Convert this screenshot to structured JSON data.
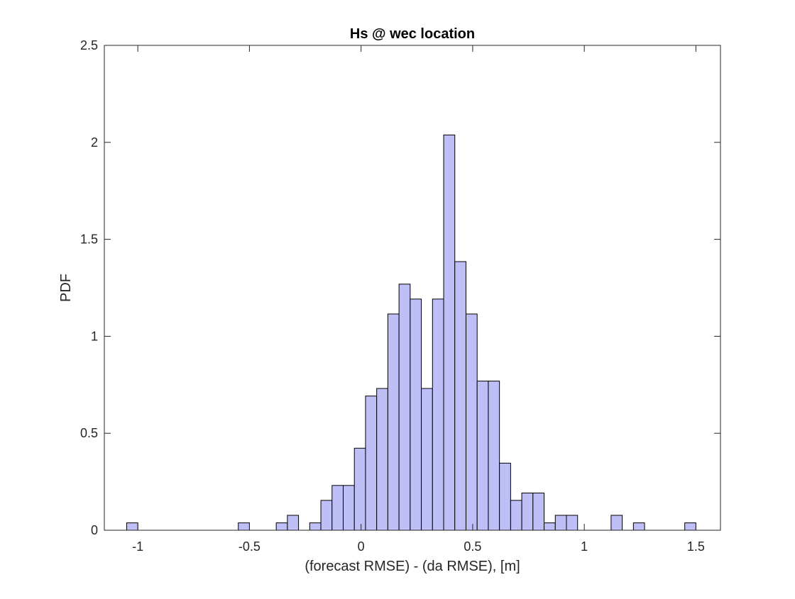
{
  "chart_data": {
    "type": "bar",
    "title": "Hs @ wec location",
    "xlabel": "(forecast RMSE) - (da RMSE), [m]",
    "ylabel": "PDF",
    "xlim": [
      -1.15,
      1.61
    ],
    "ylim": [
      0,
      2.5
    ],
    "xticks": [
      -1,
      -0.5,
      0,
      0.5,
      1,
      1.5
    ],
    "xtick_labels": [
      "-1",
      "-0.5",
      "0",
      "0.5",
      "1",
      "1.5"
    ],
    "yticks": [
      0,
      0.5,
      1,
      1.5,
      2,
      2.5
    ],
    "ytick_labels": [
      "0",
      "0.5",
      "1",
      "1.5",
      "2",
      "2.5"
    ],
    "grid": false,
    "box": true,
    "bin_width": 0.05,
    "bar_color": "#bfbff8",
    "edge_color": "#000000",
    "bins": [
      {
        "x0": -1.05,
        "x1": -1.0,
        "y": 0.038
      },
      {
        "x0": -0.55,
        "x1": -0.5,
        "y": 0.038
      },
      {
        "x0": -0.38,
        "x1": -0.33,
        "y": 0.038
      },
      {
        "x0": -0.33,
        "x1": -0.28,
        "y": 0.077
      },
      {
        "x0": -0.23,
        "x1": -0.18,
        "y": 0.038
      },
      {
        "x0": -0.18,
        "x1": -0.13,
        "y": 0.154
      },
      {
        "x0": -0.13,
        "x1": -0.08,
        "y": 0.231
      },
      {
        "x0": -0.08,
        "x1": -0.03,
        "y": 0.231
      },
      {
        "x0": -0.03,
        "x1": 0.02,
        "y": 0.423
      },
      {
        "x0": 0.02,
        "x1": 0.07,
        "y": 0.692
      },
      {
        "x0": 0.07,
        "x1": 0.12,
        "y": 0.731
      },
      {
        "x0": 0.12,
        "x1": 0.17,
        "y": 1.115
      },
      {
        "x0": 0.17,
        "x1": 0.22,
        "y": 1.269
      },
      {
        "x0": 0.22,
        "x1": 0.27,
        "y": 1.192
      },
      {
        "x0": 0.27,
        "x1": 0.32,
        "y": 0.731
      },
      {
        "x0": 0.32,
        "x1": 0.37,
        "y": 1.192
      },
      {
        "x0": 0.37,
        "x1": 0.42,
        "y": 2.038
      },
      {
        "x0": 0.42,
        "x1": 0.47,
        "y": 1.385
      },
      {
        "x0": 0.47,
        "x1": 0.52,
        "y": 1.115
      },
      {
        "x0": 0.52,
        "x1": 0.57,
        "y": 0.769
      },
      {
        "x0": 0.57,
        "x1": 0.62,
        "y": 0.769
      },
      {
        "x0": 0.62,
        "x1": 0.67,
        "y": 0.346
      },
      {
        "x0": 0.67,
        "x1": 0.72,
        "y": 0.154
      },
      {
        "x0": 0.72,
        "x1": 0.77,
        "y": 0.192
      },
      {
        "x0": 0.77,
        "x1": 0.82,
        "y": 0.192
      },
      {
        "x0": 0.82,
        "x1": 0.87,
        "y": 0.038
      },
      {
        "x0": 0.87,
        "x1": 0.92,
        "y": 0.077
      },
      {
        "x0": 0.92,
        "x1": 0.97,
        "y": 0.077
      },
      {
        "x0": 1.12,
        "x1": 1.17,
        "y": 0.077
      },
      {
        "x0": 1.22,
        "x1": 1.27,
        "y": 0.038
      },
      {
        "x0": 1.45,
        "x1": 1.5,
        "y": 0.038
      }
    ]
  }
}
